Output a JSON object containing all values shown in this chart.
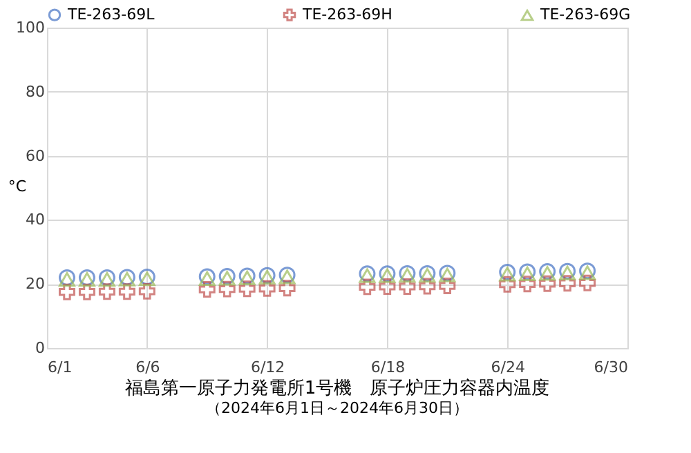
{
  "chart_data": {
    "type": "scatter",
    "title": "福島第一原子力発電所1号機　原子炉圧力容器内温度",
    "subtitle": "（2024年6月1日～2024年6月30日）",
    "ylabel": "°C",
    "x": [
      "2024-06-02",
      "2024-06-03",
      "2024-06-04",
      "2024-06-05",
      "2024-06-06",
      "2024-06-09",
      "2024-06-10",
      "2024-06-11",
      "2024-06-12",
      "2024-06-13",
      "2024-06-17",
      "2024-06-18",
      "2024-06-19",
      "2024-06-20",
      "2024-06-21",
      "2024-06-24",
      "2024-06-25",
      "2024-06-26",
      "2024-06-27",
      "2024-06-28"
    ],
    "series": [
      {
        "name": "TE-263-69L",
        "color": "#4472c4",
        "marker": "circle",
        "values": [
          22.0,
          22.0,
          22.0,
          22.1,
          22.2,
          22.3,
          22.4,
          22.5,
          22.7,
          22.8,
          23.2,
          23.2,
          23.3,
          23.3,
          23.4,
          23.7,
          23.8,
          23.9,
          24.0,
          24.1
        ]
      },
      {
        "name": "TE-263-69H",
        "color": "#c0504d",
        "marker": "cross",
        "values": [
          17.5,
          17.5,
          17.6,
          17.6,
          17.7,
          18.3,
          18.4,
          18.5,
          18.6,
          18.7,
          19.1,
          19.2,
          19.2,
          19.3,
          19.4,
          19.9,
          20.0,
          20.1,
          20.2,
          20.3
        ]
      },
      {
        "name": "TE-263-69G",
        "color": "#9bbb59",
        "marker": "triangle",
        "values": [
          21.4,
          21.4,
          21.4,
          21.5,
          21.6,
          21.7,
          21.8,
          21.9,
          22.1,
          22.2,
          22.6,
          22.6,
          22.7,
          22.7,
          22.8,
          23.1,
          23.2,
          23.3,
          23.4,
          23.5
        ]
      }
    ],
    "xlim": [
      "2024-06-01",
      "2024-06-30"
    ],
    "xticks": [
      {
        "value": "2024-06-01",
        "label": "6/1"
      },
      {
        "value": "2024-06-06",
        "label": "6/6"
      },
      {
        "value": "2024-06-12",
        "label": "6/12"
      },
      {
        "value": "2024-06-18",
        "label": "6/18"
      },
      {
        "value": "2024-06-24",
        "label": "6/24"
      },
      {
        "value": "2024-06-30",
        "label": "6/30"
      }
    ],
    "ylim": [
      0,
      100
    ],
    "yticks": [
      0,
      20,
      40,
      60,
      80,
      100
    ],
    "grid": true,
    "legend": "top"
  }
}
